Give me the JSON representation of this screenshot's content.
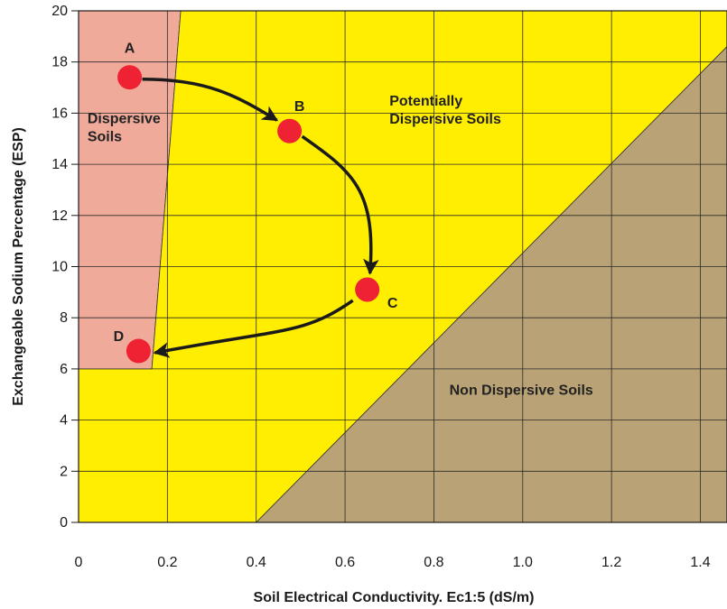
{
  "chart_data": {
    "type": "scatter",
    "title": "",
    "xlabel": "Soil Electrical Conductivity. Ec1:5 (dS/m)",
    "ylabel": "Exchangeable Sodium Percentage (ESP)",
    "xlim": [
      0,
      1.46
    ],
    "ylim": [
      0,
      20
    ],
    "x_ticks": [
      "0",
      "0.2",
      "0.4",
      "0.6",
      "0.8",
      "1.0",
      "1.2",
      "1.4"
    ],
    "y_ticks": [
      "0",
      "2",
      "4",
      "6",
      "8",
      "10",
      "12",
      "14",
      "16",
      "18",
      "20"
    ],
    "x_tick_values": [
      0,
      0.2,
      0.4,
      0.6,
      0.8,
      1.0,
      1.2,
      1.4
    ],
    "y_tick_values": [
      0,
      2,
      4,
      6,
      8,
      10,
      12,
      14,
      16,
      18,
      20
    ],
    "grid": true,
    "regions": [
      {
        "label": "Dispersive Soils",
        "lines": [
          "Dispersive",
          "Soils"
        ],
        "color": "#f0aa9a",
        "polygon": [
          [
            0,
            6
          ],
          [
            0,
            20
          ],
          [
            0.23,
            20
          ],
          [
            0.165,
            6
          ]
        ],
        "label_at": [
          0.02,
          15.6
        ]
      },
      {
        "label": "Potentially Dispersive Soils",
        "lines": [
          "Potentially",
          "Dispersive Soils"
        ],
        "color": "#ffee00",
        "polygon": [
          [
            0,
            0
          ],
          [
            0,
            6
          ],
          [
            0.165,
            6
          ],
          [
            0.23,
            20
          ],
          [
            1.46,
            20
          ],
          [
            1.46,
            18.6
          ],
          [
            0.4,
            0
          ]
        ],
        "label_at": [
          0.7,
          16.3
        ]
      },
      {
        "label": "Non Dispersive Soils",
        "lines": [
          "Non Dispersive Soils"
        ],
        "color": "#b9a275",
        "polygon": [
          [
            0.4,
            0
          ],
          [
            1.46,
            0
          ],
          [
            1.46,
            18.6
          ]
        ],
        "label_at": [
          0.835,
          5.0
        ]
      }
    ],
    "series": [
      {
        "points": [
          {
            "label": "A",
            "x": 0.115,
            "y": 17.4
          },
          {
            "label": "B",
            "x": 0.475,
            "y": 15.3
          },
          {
            "label": "C",
            "x": 0.65,
            "y": 9.1
          },
          {
            "label": "D",
            "x": 0.135,
            "y": 6.7
          }
        ]
      }
    ],
    "point_color": "#ee2233",
    "arrow_color": "#1a1a1a"
  }
}
